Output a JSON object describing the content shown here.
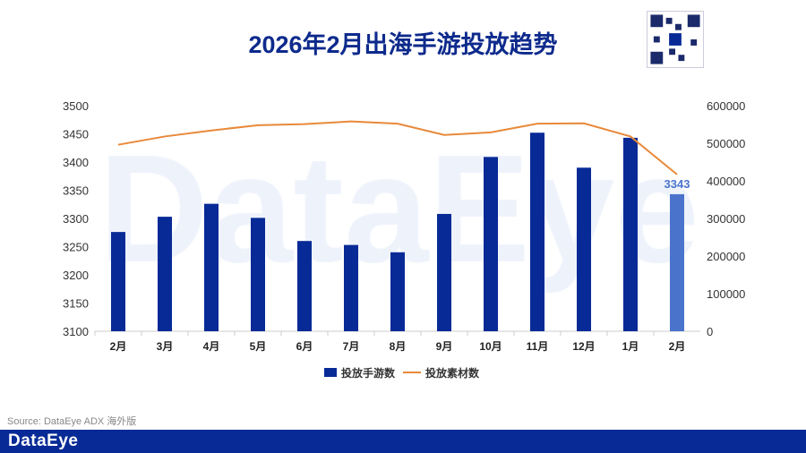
{
  "title": "2026年2月出海手游投放趋势",
  "source": "Source: DataEye ADX 海外版",
  "logo": "DataEye",
  "watermark": "DataEye",
  "chart_data": {
    "type": "bar+line",
    "categories": [
      "2月",
      "3月",
      "4月",
      "5月",
      "6月",
      "7月",
      "8月",
      "9月",
      "10月",
      "11月",
      "12月",
      "1月",
      "2月"
    ],
    "series": [
      {
        "name": "投放手游数",
        "type": "bar",
        "axis": "left",
        "color": "#072a96",
        "highlight_color": "#4a74cc",
        "values": [
          3276,
          3303,
          3326,
          3301,
          3260,
          3253,
          3240,
          3308,
          3409,
          3452,
          3390,
          3443,
          3343
        ]
      },
      {
        "name": "投放素材数",
        "type": "line",
        "axis": "right",
        "color": "#e8893a",
        "values": [
          496000,
          518000,
          534000,
          548000,
          551000,
          558000,
          552000,
          522000,
          529000,
          552000,
          553000,
          518000,
          417000
        ]
      }
    ],
    "data_labels": [
      {
        "index": 12,
        "text": "3343"
      }
    ],
    "y_left": {
      "min": 3100,
      "max": 3500,
      "ticks": [
        "3100",
        "3150",
        "3200",
        "3250",
        "3300",
        "3350",
        "3400",
        "3450",
        "3500"
      ]
    },
    "y_right": {
      "min": 0,
      "max": 600000,
      "ticks": [
        "0",
        "100000",
        "200000",
        "300000",
        "400000",
        "500000",
        "600000"
      ]
    },
    "grid": false,
    "legend": "bottom"
  }
}
